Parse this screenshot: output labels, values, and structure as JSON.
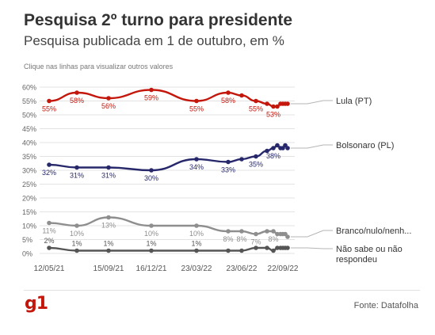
{
  "header": {
    "title": "Pesquisa 2º turno para presidente",
    "subtitle": "Pesquisa publicada em 1 de outubro, em %",
    "hint": "Clique nas linhas para visualizar outros valores"
  },
  "footer": {
    "logo": "g1",
    "source": "Fonte: Datafolha"
  },
  "chart_data": {
    "type": "line",
    "title": "Pesquisa 2º turno para presidente",
    "subtitle": "Pesquisa publicada em 1 de outubro, em %",
    "xlabel": "",
    "ylabel": "",
    "ylim": [
      0,
      60
    ],
    "yticks": [
      "0%",
      "5%",
      "10%",
      "15%",
      "20%",
      "25%",
      "30%",
      "35%",
      "40%",
      "45%",
      "50%",
      "55%",
      "60%"
    ],
    "x": [
      "12/05/21",
      "08/07/21",
      "15/09/21",
      "16/12/21",
      "23/03/22",
      "26/05/22",
      "23/06/22",
      "28/07/22",
      "18/08/22",
      "01/09/22",
      "09/09/22",
      "15/09/22",
      "22/09/22",
      "29/09/22",
      "30/09/22"
    ],
    "xticks": [
      "12/05/21",
      "15/09/21",
      "16/12/21",
      "23/03/22",
      "23/06/22",
      "22/09/22"
    ],
    "grid": true,
    "legend": "right, labels at line ends",
    "series": [
      {
        "name": "Lula (PT)",
        "color": "#c4170c",
        "values": [
          55,
          58,
          56,
          59,
          55,
          58,
          57,
          55,
          54,
          53,
          53,
          54,
          54,
          54,
          54
        ],
        "labels": [
          "55%",
          "58%",
          "56%",
          "59%",
          "55%",
          "58%",
          "",
          "55%",
          "",
          "53%",
          "",
          "",
          "",
          "",
          ""
        ]
      },
      {
        "name": "Bolsonaro (PL)",
        "color": "#27286b",
        "values": [
          32,
          31,
          31,
          30,
          34,
          33,
          34,
          35,
          37,
          38,
          39,
          38,
          38,
          39,
          38
        ],
        "labels": [
          "32%",
          "31%",
          "31%",
          "30%",
          "34%",
          "33%",
          "",
          "35%",
          "",
          "38%",
          "",
          "",
          "",
          "",
          ""
        ]
      },
      {
        "name": "Branco/nulo/nenh...",
        "color": "#8e8e8e",
        "values": [
          11,
          10,
          13,
          10,
          10,
          8,
          8,
          7,
          8,
          8,
          7,
          7,
          7,
          7,
          6
        ],
        "labels": [
          "11%",
          "10%",
          "13%",
          "10%",
          "10%",
          "8%",
          "8%",
          "7%",
          "",
          "8%",
          "",
          "",
          "",
          "",
          ""
        ]
      },
      {
        "name": "Não sabe ou não respondeu",
        "color": "#555555",
        "values": [
          2,
          1,
          1,
          1,
          1,
          1,
          1,
          2,
          2,
          1,
          2,
          2,
          2,
          2,
          2
        ],
        "labels": [
          "2%",
          "1%",
          "1%",
          "1%",
          "1%",
          "",
          "",
          "",
          "",
          "",
          "",
          "",
          "",
          "",
          ""
        ]
      }
    ]
  }
}
